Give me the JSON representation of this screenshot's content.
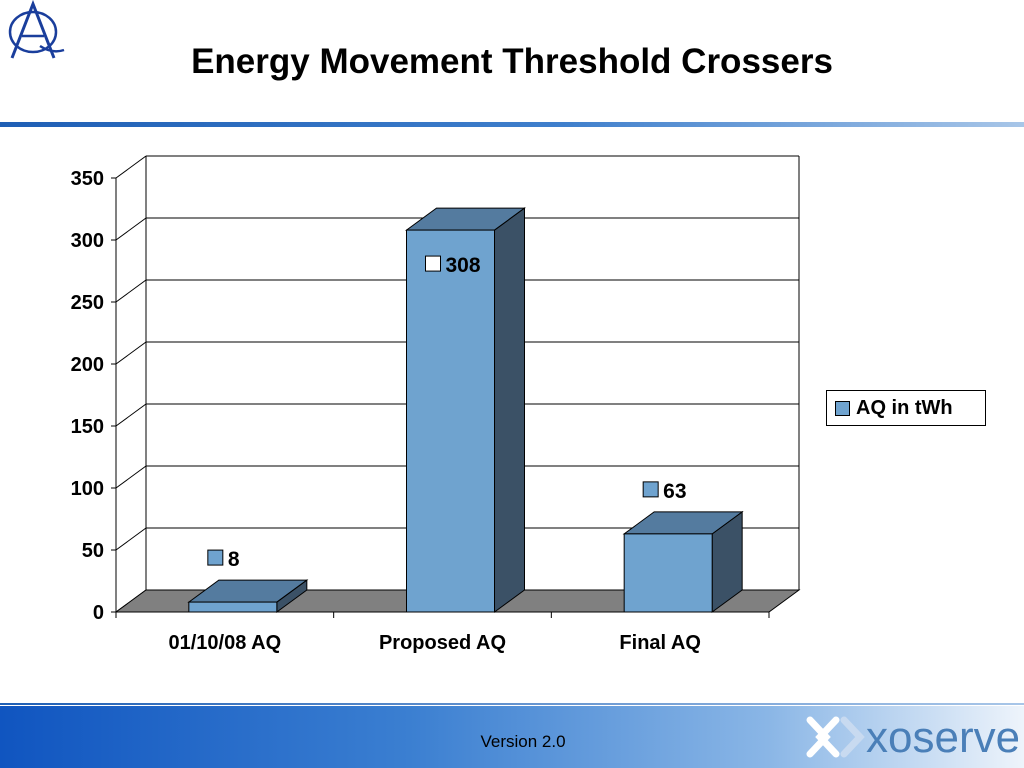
{
  "slide": {
    "title": "Energy Movement Threshold Crossers",
    "version": "Version 2.0",
    "brand": "xoserve",
    "logo_icon": "a-q-monogram-icon"
  },
  "colors": {
    "bar_front": "#6fa3cf",
    "bar_top": "#547b9f",
    "bar_side": "#3b5166",
    "floor": "#808080",
    "grid": "#000000",
    "header_rule": "#3f7fcc",
    "footer": "#3b7fd1",
    "brand": "#4a7fb8"
  },
  "chart_data": {
    "type": "bar",
    "style": "3d-column",
    "categories": [
      "01/10/08 AQ",
      "Proposed AQ",
      "Final AQ"
    ],
    "series": [
      {
        "name": "AQ in tWh",
        "values": [
          8,
          308,
          63
        ]
      }
    ],
    "data_labels": [
      "8",
      "308",
      "63"
    ],
    "y_ticks": [
      0,
      50,
      100,
      150,
      200,
      250,
      300,
      350
    ],
    "ylim": [
      0,
      350
    ],
    "grid": true,
    "legend": {
      "position": "right",
      "label": "AQ in tWh"
    },
    "xlabel": "",
    "ylabel": ""
  }
}
